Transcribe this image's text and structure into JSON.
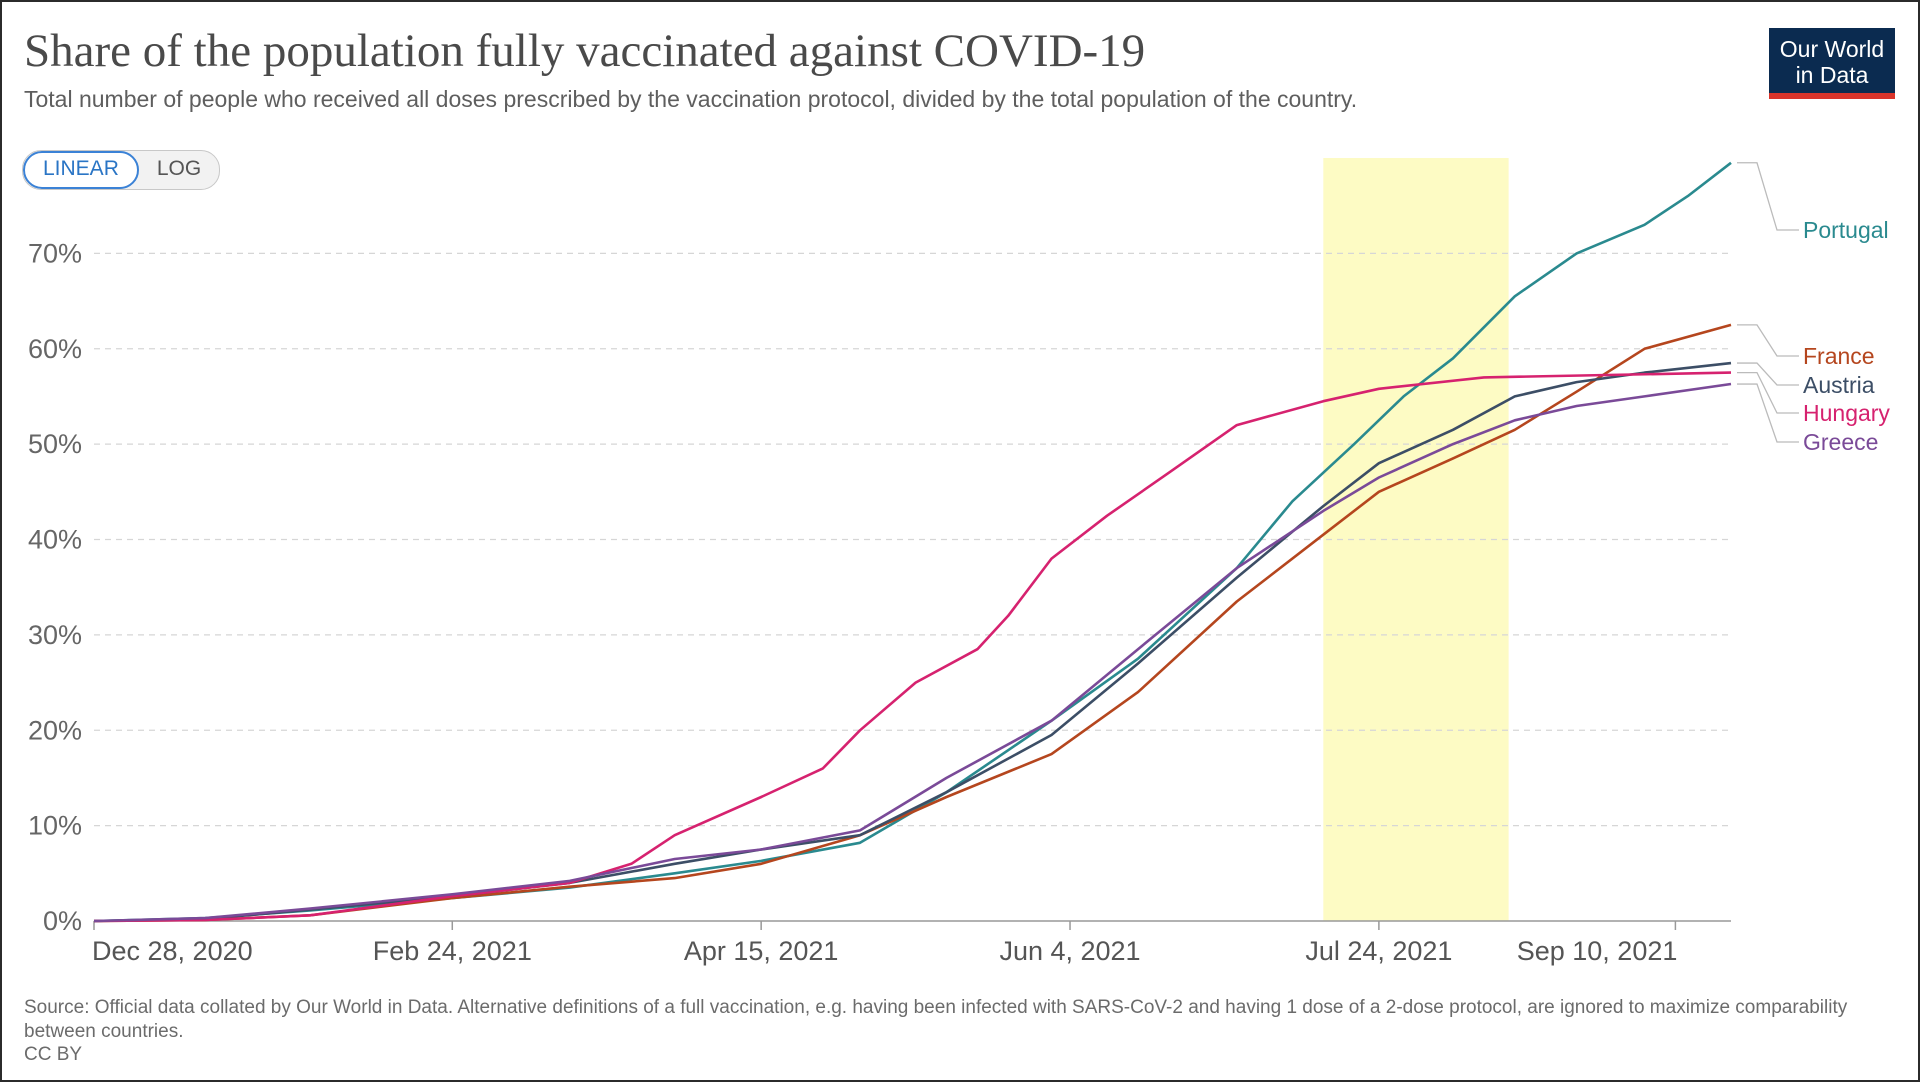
{
  "chart_data": {
    "type": "line",
    "title": "Share of the population fully vaccinated against COVID-19",
    "subtitle": "Total number of people who received all doses prescribed by the vaccination protocol, divided by the total population of the country.",
    "y_unit": "%",
    "ylim": [
      0,
      80
    ],
    "y_ticks": [
      0,
      10,
      20,
      30,
      40,
      50,
      60,
      70
    ],
    "y_tick_labels": [
      "0%",
      "10%",
      "20%",
      "30%",
      "40%",
      "50%",
      "60%",
      "70%"
    ],
    "xlim": [
      "2020-12-28",
      "2021-09-19"
    ],
    "x_ticks": [
      "2020-12-28",
      "2021-02-24",
      "2021-04-15",
      "2021-06-04",
      "2021-07-24",
      "2021-09-10"
    ],
    "x_tick_labels": [
      "Dec 28, 2020",
      "Feb 24, 2021",
      "Apr 15, 2021",
      "Jun 4, 2021",
      "Jul 24, 2021",
      "Sep 10, 2021"
    ],
    "grid": "horizontal",
    "legend": "right, end-of-line labels",
    "highlight_band": {
      "from": "2021-07-15",
      "to": "2021-08-14",
      "color": "#fdfbc4"
    },
    "series": [
      {
        "name": "Portugal",
        "color": "#2a8a8f",
        "points": [
          [
            "2020-12-28",
            0
          ],
          [
            "2021-01-15",
            0.3
          ],
          [
            "2021-02-01",
            1.1
          ],
          [
            "2021-02-24",
            2.4
          ],
          [
            "2021-03-15",
            3.5
          ],
          [
            "2021-04-01",
            5.0
          ],
          [
            "2021-04-15",
            6.3
          ],
          [
            "2021-05-01",
            8.2
          ],
          [
            "2021-05-15",
            13.5
          ],
          [
            "2021-06-01",
            21.0
          ],
          [
            "2021-06-15",
            27.5
          ],
          [
            "2021-07-01",
            37.0
          ],
          [
            "2021-07-10",
            44.0
          ],
          [
            "2021-07-20",
            50.0
          ],
          [
            "2021-07-28",
            55.0
          ],
          [
            "2021-08-05",
            59.0
          ],
          [
            "2021-08-15",
            65.5
          ],
          [
            "2021-08-25",
            70.0
          ],
          [
            "2021-09-05",
            73.0
          ],
          [
            "2021-09-12",
            76.0
          ],
          [
            "2021-09-19",
            79.5
          ]
        ]
      },
      {
        "name": "France",
        "color": "#b5461e",
        "points": [
          [
            "2020-12-28",
            0
          ],
          [
            "2021-01-15",
            0.1
          ],
          [
            "2021-02-01",
            0.6
          ],
          [
            "2021-02-24",
            2.4
          ],
          [
            "2021-03-15",
            3.6
          ],
          [
            "2021-04-01",
            4.5
          ],
          [
            "2021-04-15",
            6.0
          ],
          [
            "2021-05-01",
            9.0
          ],
          [
            "2021-05-15",
            13.0
          ],
          [
            "2021-06-01",
            17.5
          ],
          [
            "2021-06-15",
            24.0
          ],
          [
            "2021-07-01",
            33.5
          ],
          [
            "2021-07-15",
            40.5
          ],
          [
            "2021-07-24",
            45.0
          ],
          [
            "2021-08-05",
            48.5
          ],
          [
            "2021-08-15",
            51.5
          ],
          [
            "2021-08-25",
            55.5
          ],
          [
            "2021-09-05",
            60.0
          ],
          [
            "2021-09-19",
            62.5
          ]
        ]
      },
      {
        "name": "Austria",
        "color": "#3c4e66",
        "points": [
          [
            "2020-12-28",
            0
          ],
          [
            "2021-01-15",
            0.2
          ],
          [
            "2021-02-01",
            1.2
          ],
          [
            "2021-02-24",
            2.6
          ],
          [
            "2021-03-15",
            4.0
          ],
          [
            "2021-04-01",
            6.0
          ],
          [
            "2021-04-15",
            7.5
          ],
          [
            "2021-05-01",
            9.0
          ],
          [
            "2021-05-15",
            13.5
          ],
          [
            "2021-06-01",
            19.5
          ],
          [
            "2021-06-15",
            27.0
          ],
          [
            "2021-07-01",
            36.0
          ],
          [
            "2021-07-15",
            43.5
          ],
          [
            "2021-07-24",
            48.0
          ],
          [
            "2021-08-05",
            51.5
          ],
          [
            "2021-08-15",
            55.0
          ],
          [
            "2021-08-25",
            56.5
          ],
          [
            "2021-09-05",
            57.5
          ],
          [
            "2021-09-19",
            58.5
          ]
        ]
      },
      {
        "name": "Hungary",
        "color": "#d6226f",
        "points": [
          [
            "2020-12-28",
            0
          ],
          [
            "2021-01-15",
            0.1
          ],
          [
            "2021-02-01",
            0.6
          ],
          [
            "2021-02-24",
            2.6
          ],
          [
            "2021-03-15",
            4.0
          ],
          [
            "2021-03-25",
            6.0
          ],
          [
            "2021-04-01",
            9.0
          ],
          [
            "2021-04-15",
            13.0
          ],
          [
            "2021-04-25",
            16.0
          ],
          [
            "2021-05-01",
            20.0
          ],
          [
            "2021-05-10",
            25.0
          ],
          [
            "2021-05-20",
            28.5
          ],
          [
            "2021-05-25",
            32.0
          ],
          [
            "2021-06-01",
            38.0
          ],
          [
            "2021-06-10",
            42.5
          ],
          [
            "2021-06-20",
            47.0
          ],
          [
            "2021-07-01",
            52.0
          ],
          [
            "2021-07-15",
            54.5
          ],
          [
            "2021-07-24",
            55.8
          ],
          [
            "2021-08-10",
            57.0
          ],
          [
            "2021-09-19",
            57.5
          ]
        ]
      },
      {
        "name": "Greece",
        "color": "#7a4a98",
        "points": [
          [
            "2020-12-28",
            0
          ],
          [
            "2021-01-15",
            0.3
          ],
          [
            "2021-02-01",
            1.3
          ],
          [
            "2021-02-24",
            2.8
          ],
          [
            "2021-03-15",
            4.2
          ],
          [
            "2021-04-01",
            6.5
          ],
          [
            "2021-04-15",
            7.5
          ],
          [
            "2021-05-01",
            9.5
          ],
          [
            "2021-05-15",
            15.0
          ],
          [
            "2021-06-01",
            21.0
          ],
          [
            "2021-06-15",
            28.5
          ],
          [
            "2021-07-01",
            37.0
          ],
          [
            "2021-07-15",
            43.0
          ],
          [
            "2021-07-24",
            46.5
          ],
          [
            "2021-08-05",
            50.0
          ],
          [
            "2021-08-15",
            52.5
          ],
          [
            "2021-08-25",
            54.0
          ],
          [
            "2021-09-05",
            55.0
          ],
          [
            "2021-09-19",
            56.3
          ]
        ]
      }
    ]
  },
  "controls": {
    "linear_label": "LINEAR",
    "log_label": "LOG",
    "active": "linear"
  },
  "logo": {
    "line1": "Our World",
    "line2": "in Data"
  },
  "source_text": "Source: Official data collated by Our World in Data. Alternative definitions of a full vaccination, e.g. having been infected with SARS-CoV-2 and having 1 dose of a 2-dose protocol, are ignored to maximize comparability between countries.",
  "license": "CC BY",
  "colors": {
    "logo_bg": "#0b2b50",
    "logo_accent": "#d9342b",
    "toggle_active": "#3b82d6"
  }
}
